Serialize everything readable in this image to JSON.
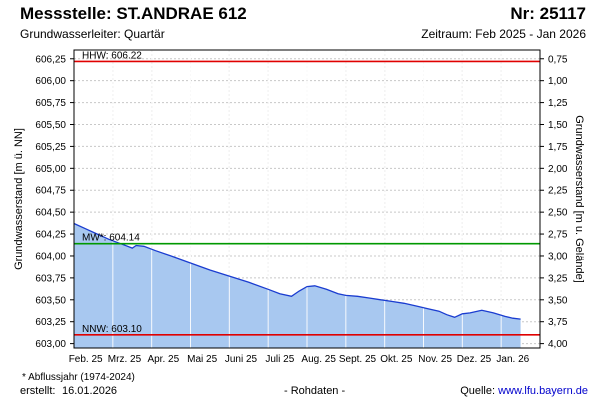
{
  "header": {
    "title": "Messstelle: ST.ANDRAE 612",
    "number": "Nr: 25117",
    "subtitle": "Grundwasserleiter: Quartär",
    "period": "Zeitraum: Feb 2025 - Jan 2026"
  },
  "footer": {
    "footnote": "* Abflussjahr (1974-2024)",
    "created_label": "erstellt:",
    "created_date": "16.01.2026",
    "center_note": "- Rohdaten -",
    "source_label": "Quelle: ",
    "source_link": "www.lfu.bayern.de"
  },
  "colors": {
    "hhw_line": "#e00000",
    "mw_line": "#009900",
    "nnw_line": "#e00000",
    "area_fill": "#a8c8f0",
    "series_line": "#1a3cd0",
    "grid": "#c8c8c8",
    "month_grid": "#ffffff"
  },
  "chart_data": {
    "type": "area",
    "ylabel": "Grundwasserstand [m ü. NN]",
    "ylabel_right": "Grundwasserstand [m u. Gelände]",
    "ylim": [
      602.95,
      606.35
    ],
    "y_ticks": [
      603.0,
      603.25,
      603.5,
      603.75,
      604.0,
      604.25,
      604.5,
      604.75,
      605.0,
      605.25,
      605.5,
      605.75,
      606.0,
      606.25
    ],
    "y_tick_labels": [
      "603,00",
      "603,25",
      "603,50",
      "603,75",
      "604,00",
      "604,25",
      "604,50",
      "604,75",
      "605,00",
      "605,25",
      "605,50",
      "605,75",
      "606,00",
      "606,25"
    ],
    "y2_ticks": [
      0.75,
      1.0,
      1.25,
      1.5,
      1.75,
      2.0,
      2.25,
      2.5,
      2.75,
      3.0,
      3.25,
      3.5,
      3.75,
      4.0
    ],
    "y2_tick_labels": [
      "0,75",
      "1,00",
      "1,25",
      "1,50",
      "1,75",
      "2,00",
      "2,25",
      "2,50",
      "2,75",
      "3,00",
      "3,25",
      "3,50",
      "3,75",
      "4,00"
    ],
    "y2_zero_level": 607.0,
    "xlim": [
      0,
      12
    ],
    "x_month_labels": [
      "Feb. 25",
      "Mrz. 25",
      "Apr. 25",
      "Mai 25",
      "Juni 25",
      "Juli 25",
      "Aug. 25",
      "Sept. 25",
      "Okt. 25",
      "Nov. 25",
      "Dez. 25",
      "Jan. 26"
    ],
    "reference_lines": [
      {
        "name": "HHW",
        "label": "HHW: 606.22",
        "value": 606.22
      },
      {
        "name": "MW",
        "label": "MW*: 604.14",
        "value": 604.14
      },
      {
        "name": "NNW",
        "label": "NNW: 603.10",
        "value": 603.1
      }
    ],
    "series": [
      {
        "x": [
          0.0,
          0.3,
          0.6,
          0.9,
          1.2,
          1.5,
          1.6,
          1.8,
          2.1,
          2.5,
          3.0,
          3.5,
          4.0,
          4.5,
          5.0,
          5.3,
          5.6,
          5.8,
          6.0,
          6.2,
          6.5,
          6.8,
          7.0,
          7.3,
          7.6,
          7.9,
          8.2,
          8.5,
          8.8,
          9.1,
          9.4,
          9.6,
          9.8,
          10.0,
          10.2,
          10.5,
          10.8,
          11.1,
          11.3,
          11.5
        ],
        "y": [
          604.37,
          604.31,
          604.25,
          604.19,
          604.14,
          604.09,
          604.12,
          604.11,
          604.06,
          604.0,
          603.92,
          603.84,
          603.77,
          603.7,
          603.62,
          603.57,
          603.54,
          603.6,
          603.65,
          603.66,
          603.62,
          603.57,
          603.55,
          603.54,
          603.52,
          603.5,
          603.48,
          603.46,
          603.43,
          603.4,
          603.37,
          603.33,
          603.3,
          603.34,
          603.35,
          603.38,
          603.35,
          603.31,
          603.29,
          603.28
        ]
      }
    ]
  }
}
